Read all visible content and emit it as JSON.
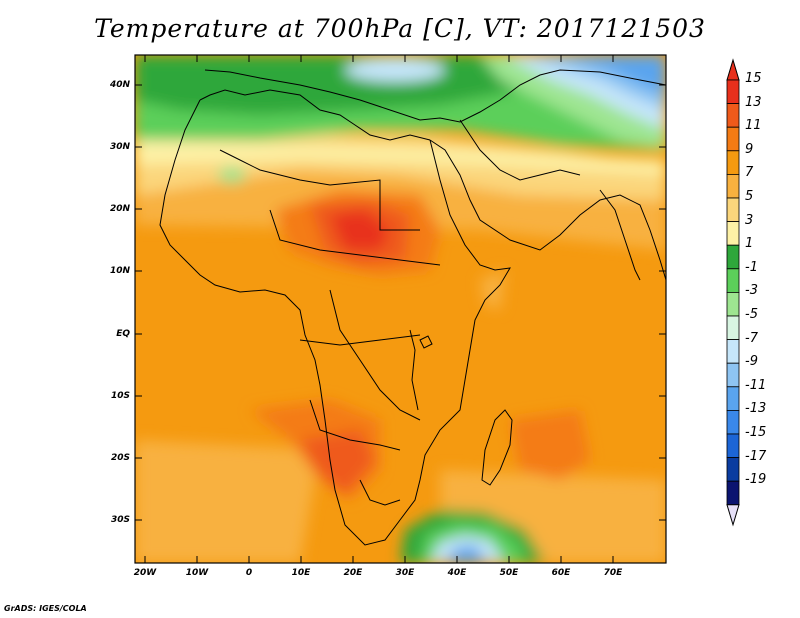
{
  "title": "Temperature at 700hPa [C], VT: 2017121503",
  "credit": "GrADS: IGES/COLA",
  "lat_ticks": [
    "40N",
    "30N",
    "20N",
    "10N",
    "EQ",
    "10S",
    "20S",
    "30S"
  ],
  "lon_ticks": [
    "20W",
    "10W",
    "0",
    "10E",
    "20E",
    "30E",
    "40E",
    "50E",
    "60E",
    "70E"
  ],
  "colorbar": {
    "labels": [
      "15",
      "13",
      "11",
      "9",
      "7",
      "5",
      "3",
      "1",
      "-1",
      "-3",
      "-5",
      "-7",
      "-9",
      "-11",
      "-13",
      "-15",
      "-17",
      "-19"
    ],
    "colors": [
      "#e8301c",
      "#ef5a1a",
      "#f47b14",
      "#f59a10",
      "#f8b13f",
      "#fbd67c",
      "#fdf1a6",
      "#2ea73b",
      "#5ccf5a",
      "#9ee591",
      "#d8f5e2",
      "#c6e6fa",
      "#8ec4f2",
      "#5aa4ee",
      "#3a88ea",
      "#1c65d6",
      "#0a3ca0",
      "#0b1470"
    ]
  }
}
